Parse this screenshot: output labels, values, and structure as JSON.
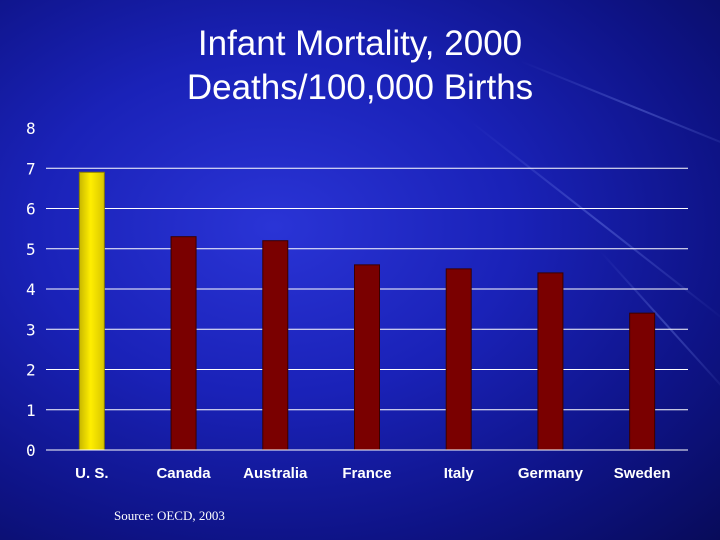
{
  "colors": {
    "bar": "#7a0000",
    "bar_highlight": "#ffee00",
    "gridline": "#ffffff",
    "text": "#ffffff"
  },
  "chart_data": {
    "type": "bar",
    "title": "Infant Mortality, 2000",
    "subtitle": "Deaths/100,000 Births",
    "categories": [
      "U. S.",
      "Canada",
      "Australia",
      "France",
      "Italy",
      "Germany",
      "Sweden"
    ],
    "values": [
      6.9,
      5.3,
      5.2,
      4.6,
      4.5,
      4.4,
      3.4
    ],
    "highlight_category": "U. S.",
    "ylim": [
      0,
      8
    ],
    "yticks": [
      0,
      1,
      2,
      3,
      4,
      5,
      6,
      7,
      8
    ],
    "grid": true,
    "source": "Source: OECD, 2003"
  }
}
